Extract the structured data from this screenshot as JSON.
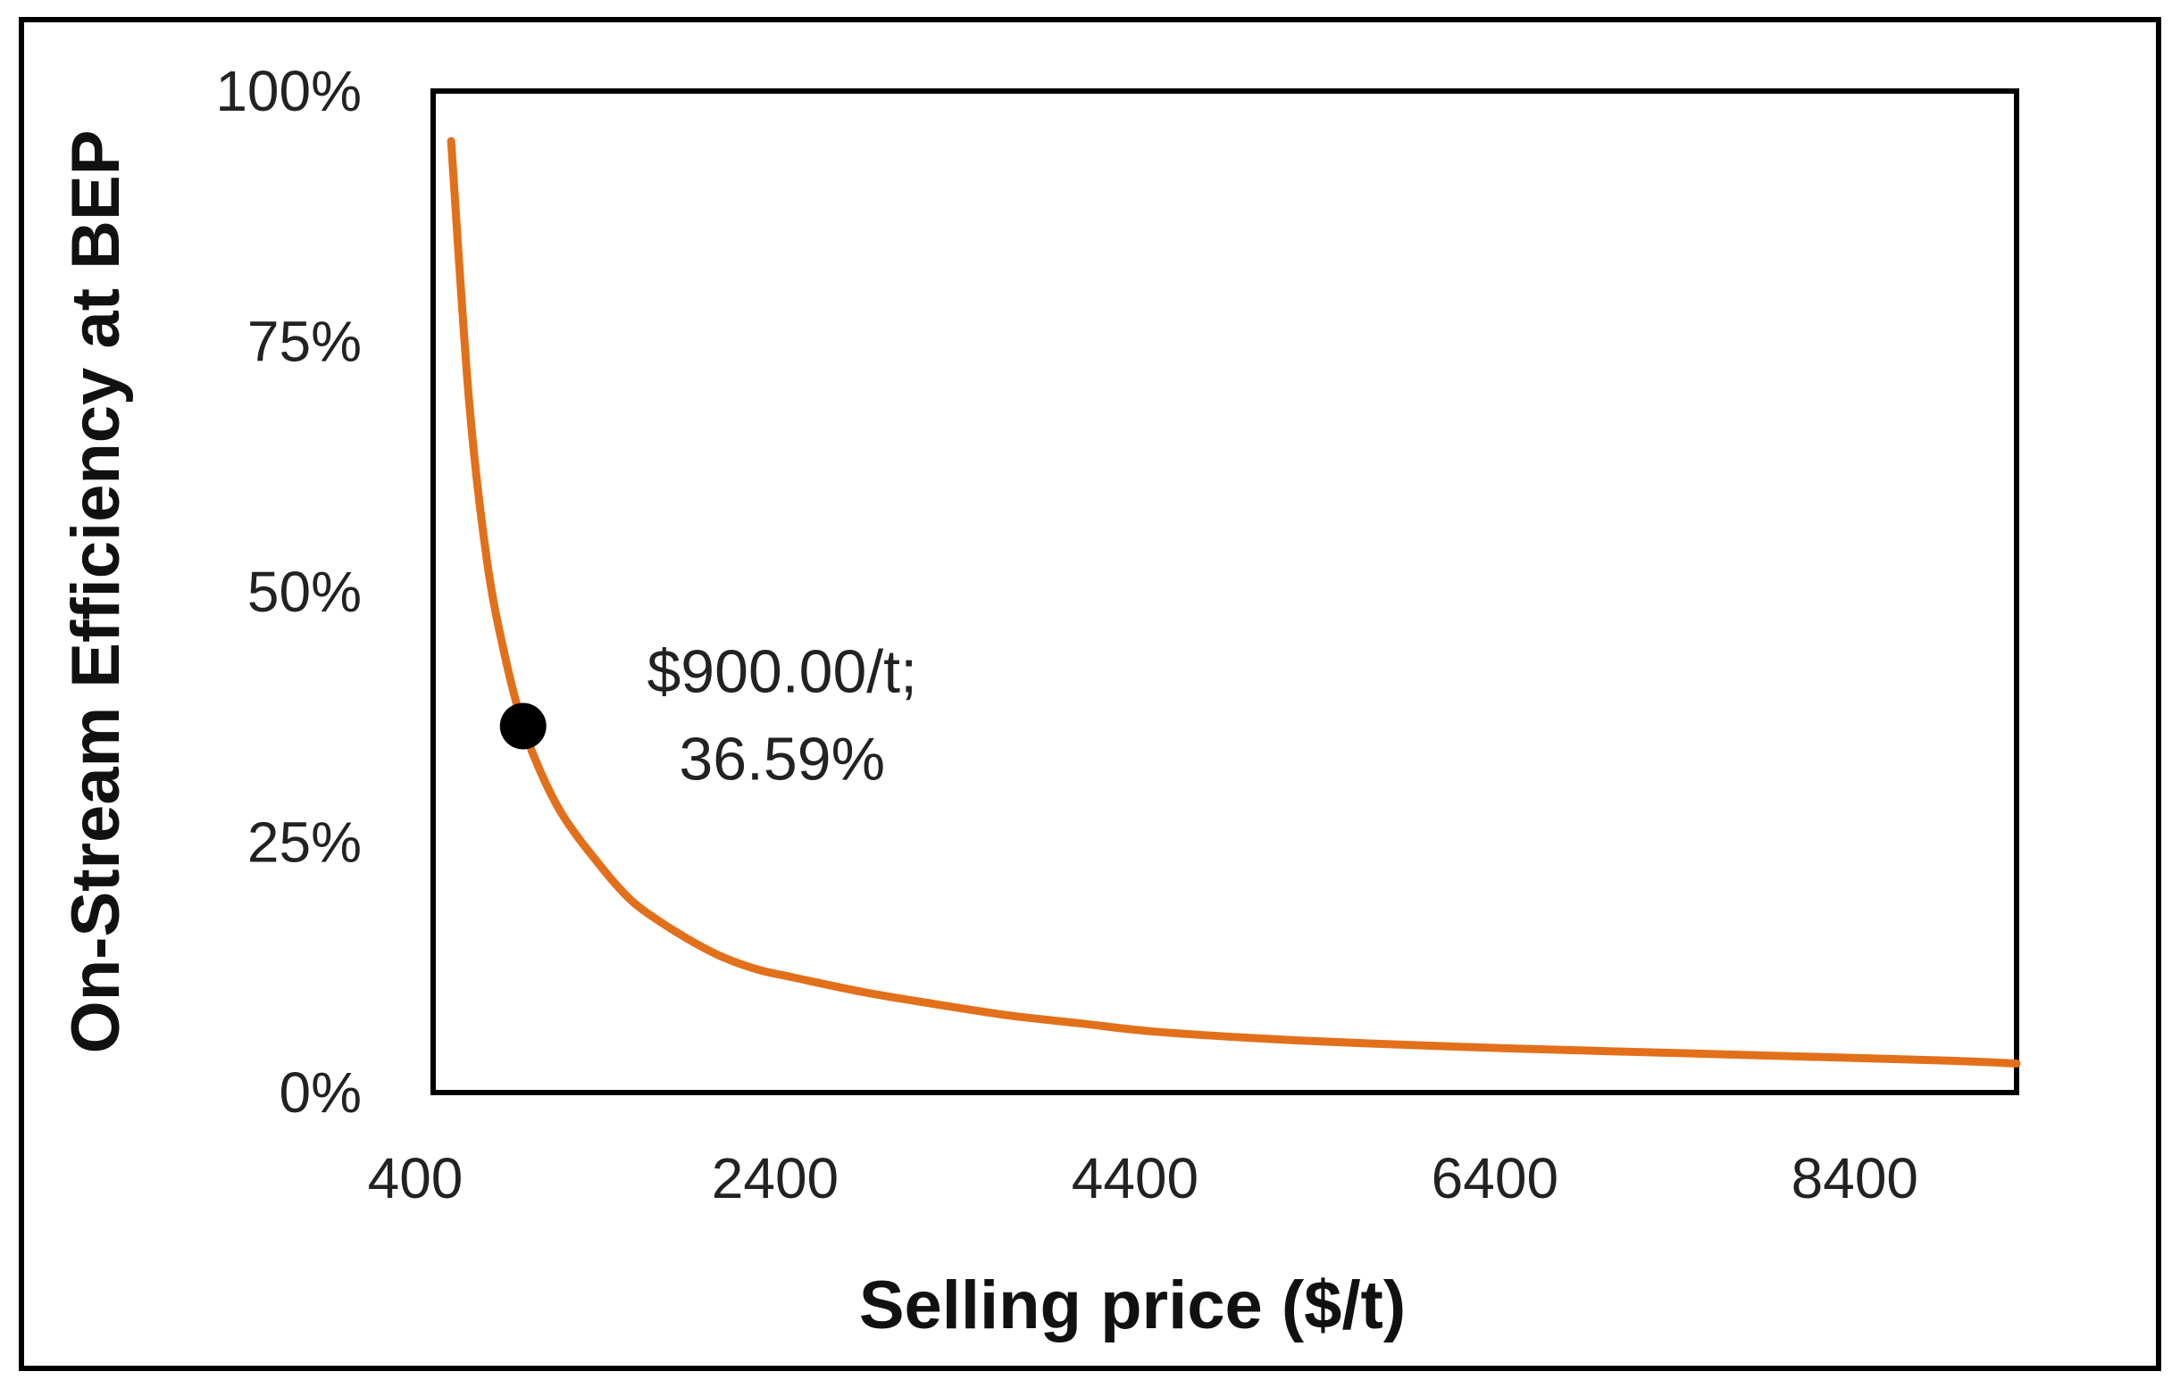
{
  "chart_data": {
    "type": "line",
    "title": "",
    "xlabel": "Selling price ($/t)",
    "ylabel": "On-Stream Efficiency at BEP",
    "xlim": [
      400,
      9200
    ],
    "ylim": [
      0,
      100
    ],
    "x_ticks": [
      400,
      2400,
      4400,
      6400,
      8400
    ],
    "x_tick_labels": [
      "400",
      "2400",
      "4400",
      "6400",
      "8400"
    ],
    "y_ticks": [
      0,
      25,
      50,
      75,
      100
    ],
    "y_tick_labels": [
      "0%",
      "25%",
      "50%",
      "75%",
      "100%"
    ],
    "grid": false,
    "legend": "none",
    "colors": {
      "line": "#e2701b",
      "marker": "#000000",
      "frame": "#000000"
    },
    "series": [
      {
        "x": [
          500,
          600,
          700,
          800,
          900,
          1000,
          1100,
          1200,
          1300,
          1400,
          1500,
          1600,
          1800,
          2000,
          2200,
          2400,
          2800,
          3200,
          3600,
          4000,
          4400,
          5000,
          5600,
          6400,
          7200,
          8000,
          8800,
          9200
        ],
        "y": [
          95.0,
          69.0,
          53.0,
          43.5,
          36.59,
          31.9,
          28.3,
          25.6,
          23.3,
          21.1,
          19.2,
          17.8,
          15.5,
          13.6,
          12.3,
          11.5,
          10.0,
          8.8,
          7.7,
          6.9,
          6.1,
          5.4,
          4.9,
          4.4,
          4.0,
          3.6,
          3.2,
          2.9
        ]
      }
    ],
    "annotations": [
      {
        "x": 900,
        "y": 36.59,
        "text_line1": "$900.00/t;",
        "text_line2": "36.59%"
      }
    ]
  }
}
